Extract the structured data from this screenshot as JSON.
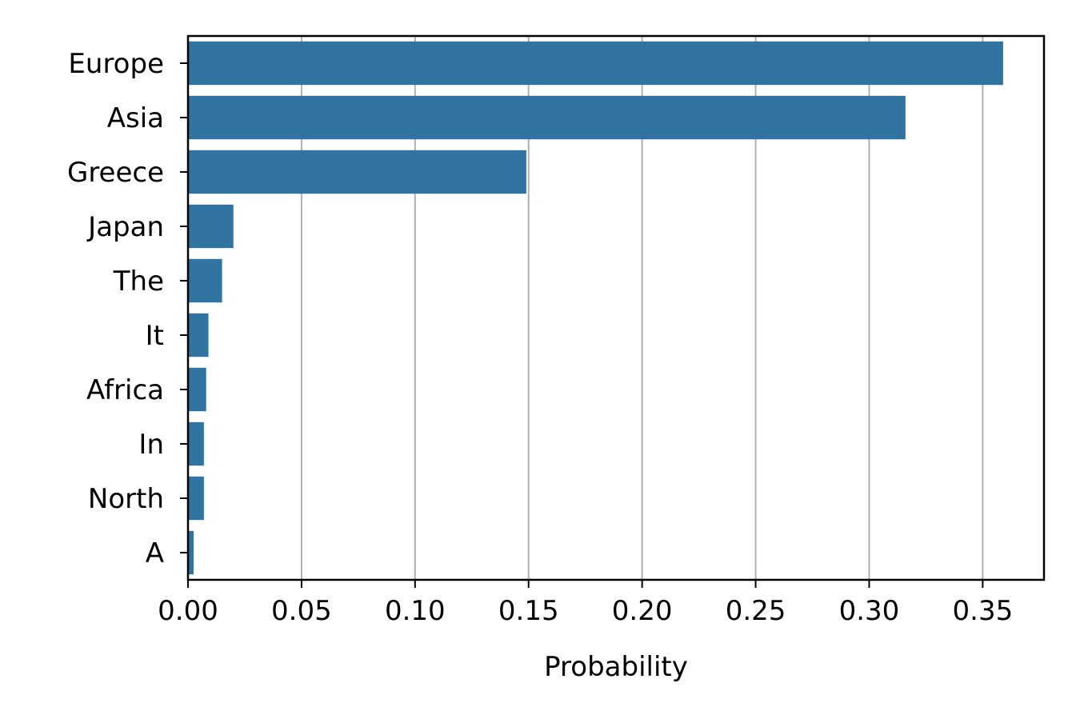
{
  "chart_data": {
    "type": "bar",
    "orientation": "horizontal",
    "title": "",
    "xlabel": "Probability",
    "ylabel": "",
    "categories": [
      "Europe",
      "Asia",
      "Greece",
      "Japan",
      "The",
      "It",
      "Africa",
      "In",
      "North",
      "A"
    ],
    "values": [
      0.359,
      0.316,
      0.149,
      0.02,
      0.015,
      0.009,
      0.008,
      0.007,
      0.007,
      0.0025
    ],
    "xlim": [
      0,
      0.377
    ],
    "xticks": [
      0.0,
      0.05,
      0.1,
      0.15,
      0.2,
      0.25,
      0.3,
      0.35
    ],
    "xtick_labels": [
      "0.00",
      "0.05",
      "0.10",
      "0.15",
      "0.20",
      "0.25",
      "0.30",
      "0.35"
    ],
    "grid": "vertical",
    "legend": "none",
    "colors": {
      "bar": "#3274a1",
      "grid": "#b0b0b0",
      "axis": "#000000"
    }
  }
}
